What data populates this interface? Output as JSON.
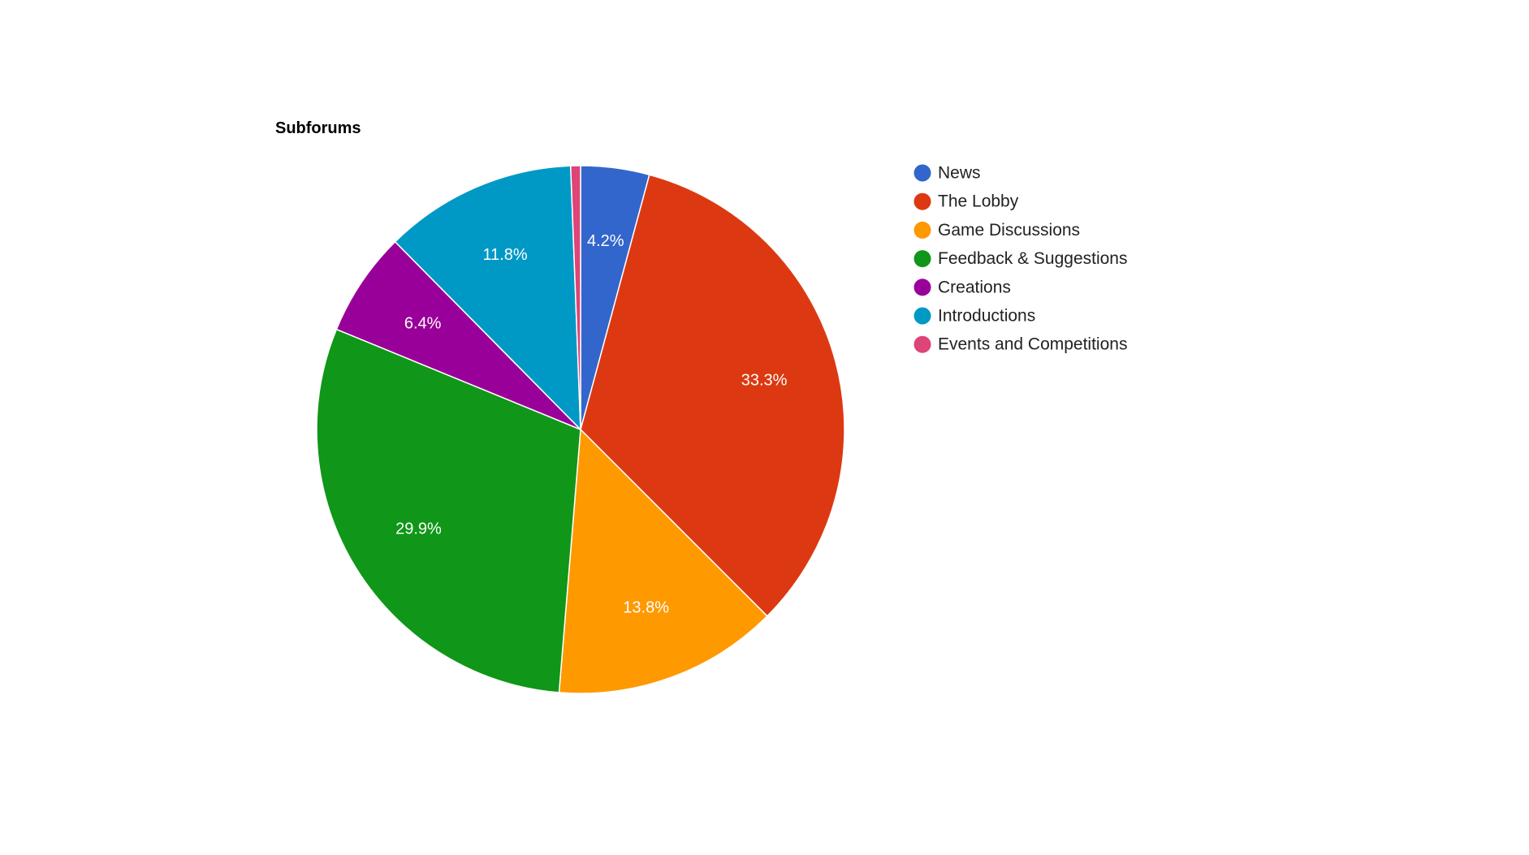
{
  "chart_data": {
    "type": "pie",
    "title": "Subforums",
    "categories": [
      "News",
      "The Lobby",
      "Game Discussions",
      "Feedback & Suggestions",
      "Creations",
      "Introductions",
      "Events and Competitions"
    ],
    "values": [
      4.2,
      33.3,
      13.8,
      29.9,
      6.4,
      11.8,
      0.6
    ],
    "labels": [
      "4.2%",
      "33.3%",
      "13.8%",
      "29.9%",
      "6.4%",
      "11.8%",
      ""
    ],
    "colors": [
      "#3366cc",
      "#dc3912",
      "#ff9900",
      "#109618",
      "#990099",
      "#0099c6",
      "#dd4477"
    ],
    "legend_position": "right",
    "start_angle": "top, clockwise"
  }
}
